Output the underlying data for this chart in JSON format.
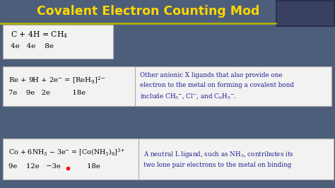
{
  "title": "Covalent Electron Counting Mod",
  "title_color": "#FFD700",
  "bg_color": "#4d5e7a",
  "box_bg": "#f2f2f2",
  "text_dark": "#000000",
  "text_blue": "#1a1a8c",
  "line_color": "#b8b800",
  "cam_color": "#2a3050",
  "box1_line1": "C + 4H = CH$_{4}$",
  "box1_line2": "4e   4e    8e",
  "box2l_line1": "Re + 9H + 2e$^{-}$ = [ReH$_{9}$]$^{2-}$",
  "box2l_line2": "7e    9e   2e          18e",
  "box2r_text": "Other anionic X ligands that also provide one\nelectron to the metal on forming a covalent bond\ninclude CH$_{3}$$^{-}$, Cl$^{-}$, and C$_{6}$H$_{5}$$^{-}$.",
  "box3l_line1": "Co + 6NH$_{3}$ − 3e$^{-}$ = [Co(NH$_{3}$)$_{6}$]$^{3+}$",
  "box3l_line2_a": "9e    12e   −3e",
  "box3l_line2_b": "        18e",
  "box3r_text": "A neutral L ligand, such as NH$_{3}$, contributes its\ntwo lone pair electrons to the metal on binding"
}
